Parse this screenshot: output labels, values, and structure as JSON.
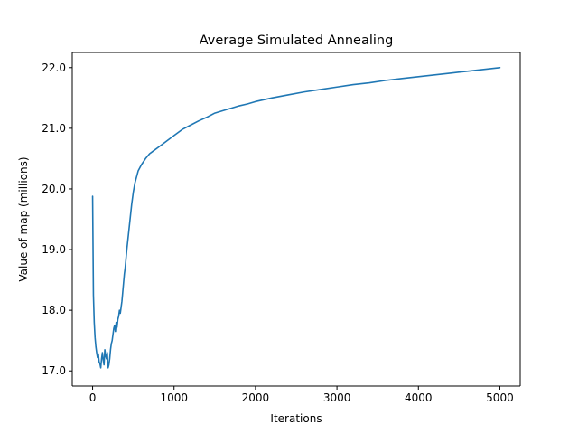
{
  "chart_data": {
    "type": "line",
    "title": "Average Simulated Annealing",
    "xlabel": "Iterations",
    "ylabel": "Value of map (millions)",
    "xlim": [
      -250,
      5250
    ],
    "ylim": [
      16.75,
      22.25
    ],
    "xticks": [
      0,
      1000,
      2000,
      3000,
      4000,
      5000
    ],
    "xtick_labels": [
      "0",
      "1000",
      "2000",
      "3000",
      "4000",
      "5000"
    ],
    "yticks": [
      17.0,
      18.0,
      19.0,
      20.0,
      21.0,
      22.0
    ],
    "ytick_labels": [
      "17.0",
      "18.0",
      "19.0",
      "20.0",
      "21.0",
      "22.0"
    ],
    "grid": false,
    "series": [
      {
        "color": "#1f77b4",
        "x": [
          0,
          10,
          20,
          30,
          40,
          50,
          60,
          70,
          80,
          90,
          100,
          110,
          120,
          130,
          140,
          150,
          160,
          170,
          180,
          190,
          200,
          210,
          220,
          230,
          240,
          250,
          260,
          270,
          280,
          290,
          300,
          310,
          320,
          330,
          340,
          350,
          360,
          370,
          380,
          390,
          400,
          420,
          440,
          460,
          480,
          500,
          520,
          540,
          560,
          580,
          600,
          650,
          700,
          750,
          800,
          900,
          1000,
          1100,
          1200,
          1300,
          1400,
          1500,
          1600,
          1700,
          1800,
          1900,
          2000,
          2200,
          2400,
          2600,
          2800,
          3000,
          3200,
          3400,
          3600,
          3800,
          4000,
          4200,
          4400,
          4600,
          4800,
          5000
        ],
        "y": [
          19.88,
          18.25,
          17.8,
          17.55,
          17.4,
          17.3,
          17.22,
          17.28,
          17.15,
          17.12,
          17.05,
          17.2,
          17.3,
          17.18,
          17.1,
          17.35,
          17.25,
          17.2,
          17.3,
          17.05,
          17.1,
          17.2,
          17.35,
          17.45,
          17.5,
          17.6,
          17.7,
          17.75,
          17.65,
          17.8,
          17.72,
          17.85,
          17.9,
          18.0,
          17.95,
          18.05,
          18.15,
          18.3,
          18.45,
          18.6,
          18.7,
          19.0,
          19.25,
          19.5,
          19.75,
          19.95,
          20.1,
          20.2,
          20.3,
          20.35,
          20.4,
          20.5,
          20.58,
          20.63,
          20.68,
          20.78,
          20.88,
          20.98,
          21.05,
          21.12,
          21.18,
          21.25,
          21.29,
          21.33,
          21.37,
          21.4,
          21.44,
          21.5,
          21.55,
          21.6,
          21.64,
          21.68,
          21.72,
          21.75,
          21.79,
          21.82,
          21.85,
          21.88,
          21.91,
          21.94,
          21.97,
          22.0
        ]
      }
    ]
  }
}
